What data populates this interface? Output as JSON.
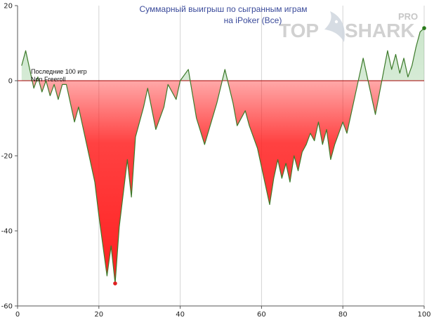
{
  "chart_data": {
    "type": "area",
    "title": "Суммарный выигрыш по сыгранным играм",
    "subtitle": "на iPoker (Все)",
    "annotation_lines": [
      "Последние 100 игр",
      "Non Freeroll"
    ],
    "xlabel": "",
    "ylabel": "",
    "xlim": [
      0,
      100
    ],
    "ylim": [
      -60,
      20
    ],
    "x_ticks": [
      0,
      20,
      40,
      60,
      80,
      100
    ],
    "y_ticks": [
      20,
      0,
      -20,
      -40,
      -60
    ],
    "grid": "vertical",
    "reference_line": 0,
    "series": [
      {
        "x": [
          1,
          2,
          4,
          5,
          6,
          7,
          8,
          9,
          10,
          11,
          12,
          14,
          15,
          16,
          17,
          18,
          19,
          20,
          22,
          23,
          24,
          25,
          27,
          28,
          29,
          31,
          32,
          34,
          36,
          37,
          39,
          40,
          42,
          44,
          46,
          49,
          51,
          53,
          54,
          56,
          57,
          59,
          62,
          63,
          64,
          65,
          66,
          67,
          68,
          69,
          70,
          71,
          72,
          73,
          74,
          75,
          76,
          77,
          78,
          79,
          80,
          81,
          85,
          88,
          91,
          92,
          93,
          94,
          95,
          96,
          97,
          98,
          99,
          100
        ],
        "y": [
          4,
          8,
          -2,
          1,
          -3,
          0,
          -4,
          -1,
          -5,
          -1,
          -1,
          -11,
          -7,
          -12,
          -17,
          -22,
          -27,
          -36,
          -52,
          -44,
          -54,
          -39,
          -21,
          -31,
          -15,
          -7,
          -2,
          -13,
          -7,
          -1,
          -5,
          0,
          3,
          -10,
          -17,
          -6,
          3,
          -6,
          -12,
          -8,
          -12,
          -18,
          -33,
          -26,
          -21,
          -26,
          -22,
          -27,
          -20,
          -24,
          -19,
          -17,
          -14,
          -16,
          -11,
          -17,
          -13,
          -21,
          -17,
          -14,
          -11,
          -14,
          6,
          -9,
          8,
          3,
          7,
          2,
          6,
          1,
          4,
          9,
          13,
          14
        ]
      }
    ],
    "end_marker_x": 100,
    "min_marker_x": 24
  },
  "colors": {
    "line": "#3c7a2a",
    "positive_fill": "#2f9a2f",
    "negative_fill": "#ff2020",
    "zero_line": "#a50000",
    "grid": "#d4d4d4",
    "title": "#3a4a9a",
    "end_marker": "#2a7a1a",
    "min_marker": "#e02020"
  },
  "logo": {
    "prefix": "TOP",
    "suffix": "SHARK",
    "badge": "PRO"
  }
}
